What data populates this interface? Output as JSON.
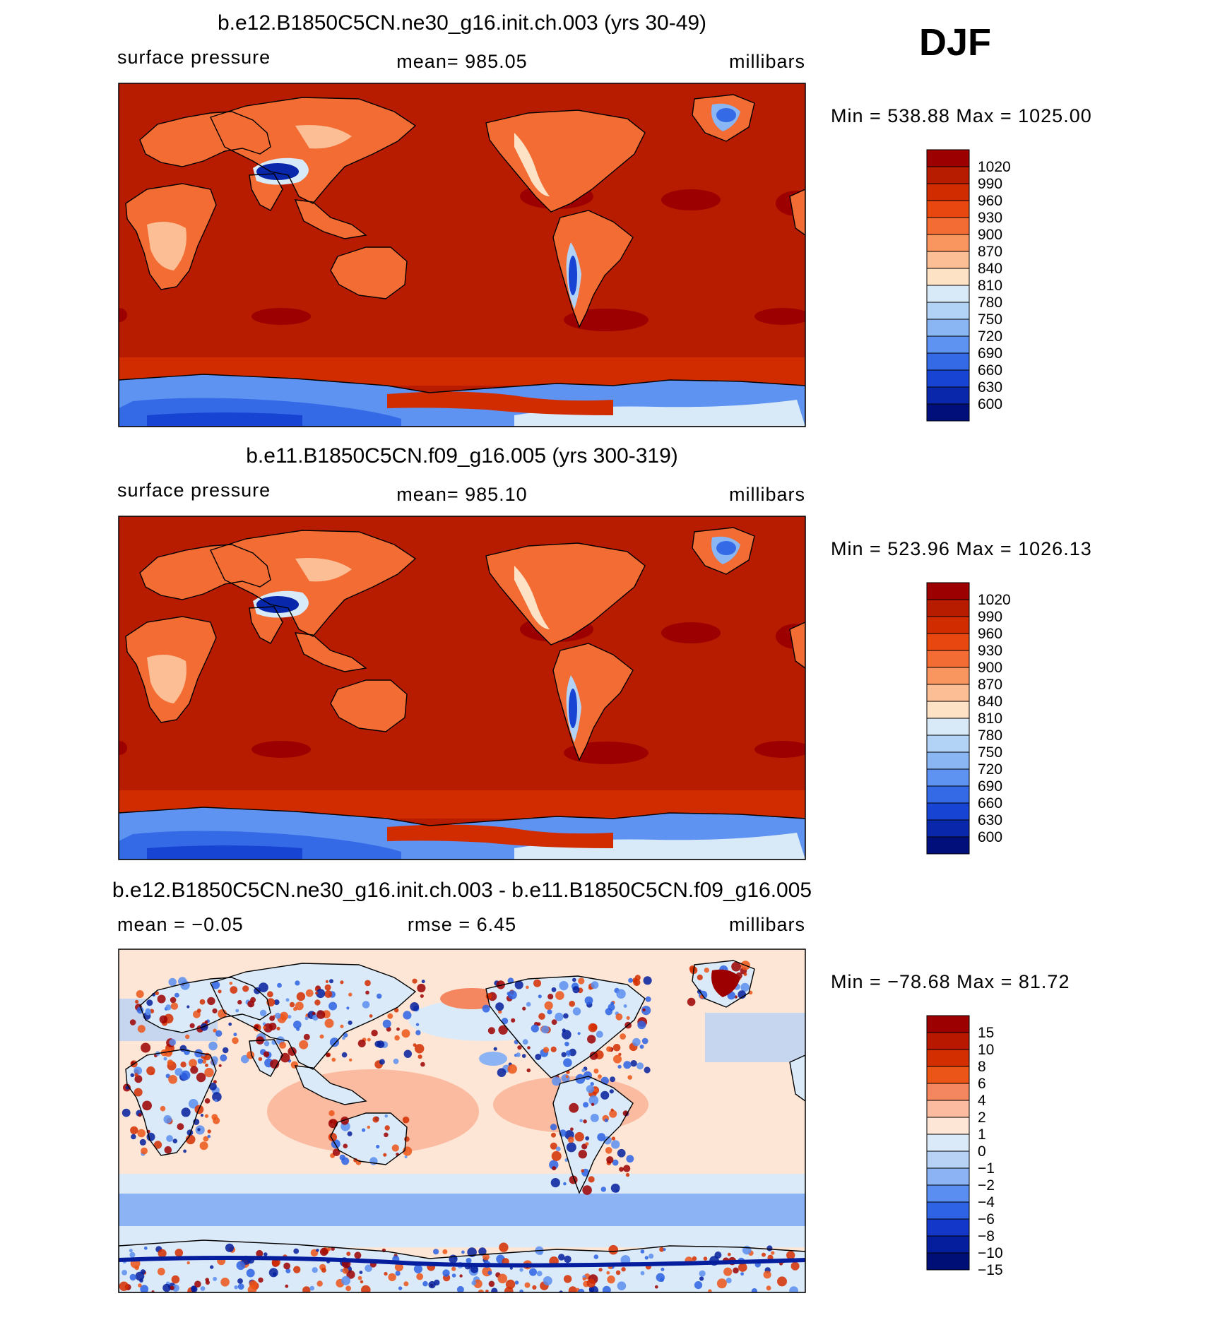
{
  "season": "DJF",
  "palettes": {
    "pressure": [
      "#9c0000",
      "#b71c00",
      "#d02c00",
      "#e84810",
      "#f36c34",
      "#f9955e",
      "#fbbe95",
      "#fde2c6",
      "#d8e9f8",
      "#b2d3f6",
      "#8bb6f4",
      "#5e93f2",
      "#346ae6",
      "#1744d3",
      "#0827aa",
      "#000f7a"
    ],
    "difference": [
      "#9c0000",
      "#b81800",
      "#d32e00",
      "#ec5518",
      "#f58760",
      "#fbbba0",
      "#fde6d6",
      "#dbeaf8",
      "#b8d2f5",
      "#8cb3f3",
      "#5a8ef0",
      "#2d63e4",
      "#1337c8",
      "#041e9e",
      "#000f76"
    ]
  },
  "panels": [
    {
      "title": "b.e12.B1850C5CN.ne30_g16.init.ch.003 (yrs 30-49)",
      "left_label": "surface pressure",
      "center_label": "mean=  985.05",
      "units": "millibars",
      "minmax": "Min  =  538.88  Max  =  1025.00",
      "palette": "pressure",
      "levels": [
        "1020",
        "990",
        "960",
        "930",
        "900",
        "870",
        "840",
        "810",
        "780",
        "750",
        "720",
        "690",
        "660",
        "630",
        "600"
      ]
    },
    {
      "title": "b.e11.B1850C5CN.f09_g16.005 (yrs 300-319)",
      "left_label": "surface pressure",
      "center_label": "mean=  985.10",
      "units": "millibars",
      "minmax": "Min  =  523.96  Max  =  1026.13",
      "palette": "pressure",
      "levels": [
        "1020",
        "990",
        "960",
        "930",
        "900",
        "870",
        "840",
        "810",
        "780",
        "750",
        "720",
        "690",
        "660",
        "630",
        "600"
      ]
    },
    {
      "title": "b.e12.B1850C5CN.ne30_g16.init.ch.003 - b.e11.B1850C5CN.f09_g16.005",
      "left_label": "mean  =    −0.05",
      "center_label": "rmse  =     6.45",
      "units": "millibars",
      "minmax": "Min  =  −78.68  Max  =    81.72",
      "palette": "difference",
      "levels": [
        "15",
        "10",
        "8",
        "6",
        "4",
        "2",
        "1",
        "0",
        "−1",
        "−2",
        "−4",
        "−6",
        "−8",
        "−10",
        "−15"
      ]
    }
  ]
}
